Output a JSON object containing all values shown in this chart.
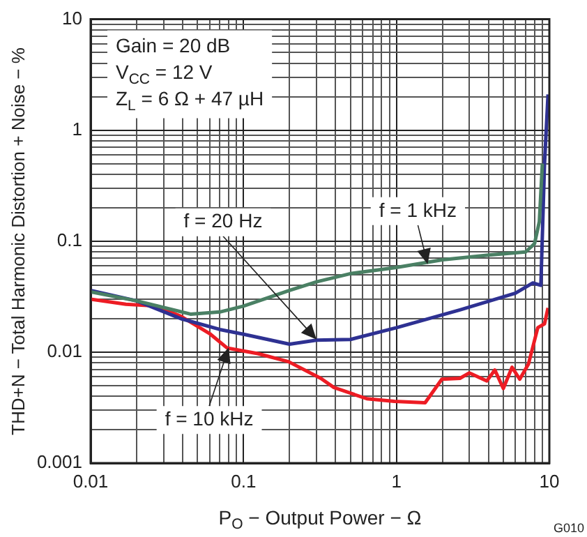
{
  "chart_data": {
    "type": "line",
    "xlabel": "P$_{O}$ − Output Power − Ω",
    "ylabel": "THD+N − Total Harmonic Distortion + Noise − %",
    "log": "xy",
    "grid": true,
    "legend": false,
    "marker": "none",
    "line_style": "solid",
    "xlim": [
      0.01,
      10
    ],
    "ylim": [
      0.001,
      10
    ],
    "xticks": [
      0.01,
      {
        "value": 0.02,
        "label": null
      },
      {
        "value": 0.03,
        "label": null
      },
      {
        "value": 0.04,
        "label": null
      },
      {
        "value": 0.05,
        "label": null
      },
      {
        "value": 0.06,
        "label": null
      },
      {
        "value": 0.07,
        "label": null
      },
      {
        "value": 0.08,
        "label": null
      },
      {
        "value": 0.09,
        "label": null
      },
      0.1,
      {
        "value": 0.2,
        "label": null
      },
      {
        "value": 0.3,
        "label": null
      },
      {
        "value": 0.4,
        "label": null
      },
      {
        "value": 0.5,
        "label": null
      },
      {
        "value": 0.6,
        "label": null
      },
      {
        "value": 0.7,
        "label": null
      },
      {
        "value": 0.8,
        "label": null
      },
      {
        "value": 0.9,
        "label": null
      },
      1,
      {
        "value": 2,
        "label": null
      },
      {
        "value": 3,
        "label": null
      },
      {
        "value": 4,
        "label": null
      },
      {
        "value": 5,
        "label": null
      },
      {
        "value": 6,
        "label": null
      },
      {
        "value": 7,
        "label": null
      },
      {
        "value": 8,
        "label": null
      },
      {
        "value": 9,
        "label": null
      },
      10
    ],
    "yticks": [
      0.001,
      {
        "value": 0.002,
        "label": null
      },
      {
        "value": 0.003,
        "label": null
      },
      {
        "value": 0.004,
        "label": null
      },
      {
        "value": 0.005,
        "label": null
      },
      {
        "value": 0.006,
        "label": null
      },
      {
        "value": 0.007,
        "label": null
      },
      {
        "value": 0.008,
        "label": null
      },
      {
        "value": 0.009,
        "label": null
      },
      0.01,
      {
        "value": 0.02,
        "label": null
      },
      {
        "value": 0.03,
        "label": null
      },
      {
        "value": 0.04,
        "label": null
      },
      {
        "value": 0.05,
        "label": null
      },
      {
        "value": 0.06,
        "label": null
      },
      {
        "value": 0.07,
        "label": null
      },
      {
        "value": 0.08,
        "label": null
      },
      {
        "value": 0.09,
        "label": null
      },
      0.1,
      {
        "value": 0.2,
        "label": null
      },
      {
        "value": 0.3,
        "label": null
      },
      {
        "value": 0.4,
        "label": null
      },
      {
        "value": 0.5,
        "label": null
      },
      {
        "value": 0.6,
        "label": null
      },
      {
        "value": 0.7,
        "label": null
      },
      {
        "value": 0.8,
        "label": null
      },
      {
        "value": 0.9,
        "label": null
      },
      1,
      {
        "value": 2,
        "label": null
      },
      {
        "value": 3,
        "label": null
      },
      {
        "value": 4,
        "label": null
      },
      {
        "value": 5,
        "label": null
      },
      {
        "value": 6,
        "label": null
      },
      {
        "value": 7,
        "label": null
      },
      {
        "value": 8,
        "label": null
      },
      {
        "value": 9,
        "label": null
      },
      10
    ],
    "series": [
      {
        "color": "#4a8064",
        "x": [
          0.01,
          0.02,
          0.045,
          0.07,
          0.1,
          0.2,
          0.3,
          0.5,
          1,
          2,
          4,
          7,
          8,
          8.6,
          9
        ],
        "values": [
          0.035,
          0.029,
          0.022,
          0.023,
          0.026,
          0.036,
          0.043,
          0.051,
          0.058,
          0.068,
          0.075,
          0.08,
          0.095,
          0.15,
          0.5
        ]
      },
      {
        "color": "#2e3192",
        "x": [
          0.01,
          0.02,
          0.039,
          0.07,
          0.1,
          0.2,
          0.3,
          0.5,
          1,
          2.6,
          6,
          7.8,
          8.8,
          9.3,
          9.8
        ],
        "values": [
          0.036,
          0.029,
          0.02,
          0.016,
          0.0145,
          0.0118,
          0.0128,
          0.013,
          0.0166,
          0.024,
          0.034,
          0.042,
          0.04,
          0.5,
          2.1
        ]
      },
      {
        "color": "#ed1c24",
        "x": [
          0.01,
          0.017,
          0.027,
          0.039,
          0.06,
          0.078,
          0.124,
          0.197,
          0.32,
          0.39,
          0.64,
          0.97,
          1.54,
          1.98,
          2.6,
          3,
          3.9,
          4.4,
          5,
          5.7,
          6.4,
          7.3,
          8.4,
          9.3,
          9.8
        ],
        "values": [
          0.03,
          0.027,
          0.026,
          0.021,
          0.0147,
          0.0109,
          0.0097,
          0.0082,
          0.0058,
          0.0048,
          0.0038,
          0.0036,
          0.0035,
          0.0057,
          0.0058,
          0.0065,
          0.0055,
          0.0069,
          0.0047,
          0.0073,
          0.0057,
          0.0078,
          0.0166,
          0.018,
          0.025
        ]
      }
    ],
    "annotations": [
      "Gain = 20 dB",
      "V$_{CC}$ = 12 V",
      "Z$_{L}$ = 6 Ω + 47 µH",
      {
        "text": "f = 20 Hz",
        "x": 0.3,
        "y": 0.013
      },
      {
        "text": "f = 1 kHz",
        "x": 1.6,
        "y": 0.062
      },
      {
        "text": "f = 10 kHz",
        "x": 0.08,
        "y": 0.011
      },
      "G010"
    ]
  }
}
